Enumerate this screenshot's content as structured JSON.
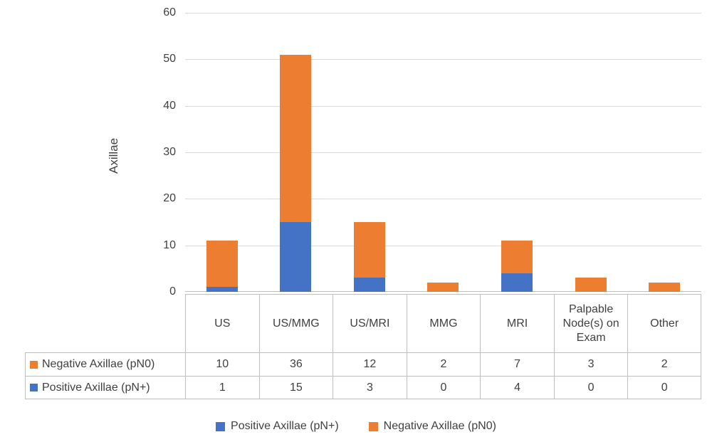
{
  "chart_data": {
    "type": "bar",
    "stacked": true,
    "title": "",
    "xlabel": "",
    "ylabel": "Axillae",
    "ylim": [
      0,
      60
    ],
    "ytick_step": 10,
    "yticks": [
      0,
      10,
      20,
      30,
      40,
      50,
      60
    ],
    "grid": true,
    "legend_position": "bottom",
    "categories": [
      "US",
      "US/MMG",
      "US/MRI",
      "MMG",
      "MRI",
      "Palpable Node(s) on Exam",
      "Other"
    ],
    "series": [
      {
        "name": "Positive Axillae (pN+)",
        "color": "#4472C4",
        "values": [
          1,
          15,
          3,
          0,
          4,
          0,
          0
        ]
      },
      {
        "name": "Negative Axillae (pN0)",
        "color": "#ED7D31",
        "values": [
          10,
          36,
          12,
          2,
          7,
          3,
          2
        ]
      }
    ],
    "data_table": {
      "rows": [
        {
          "label": "Negative Axillae (pN0)",
          "color": "#ED7D31",
          "values": [
            "10",
            "36",
            "12",
            "2",
            "7",
            "3",
            "2"
          ]
        },
        {
          "label": "Positive Axillae (pN+)",
          "color": "#4472C4",
          "values": [
            "1",
            "15",
            "3",
            "0",
            "4",
            "0",
            "0"
          ]
        }
      ]
    },
    "legend": [
      {
        "label": "Positive Axillae (pN+)",
        "color": "#4472C4"
      },
      {
        "label": "Negative Axillae (pN0)",
        "color": "#ED7D31"
      }
    ]
  }
}
